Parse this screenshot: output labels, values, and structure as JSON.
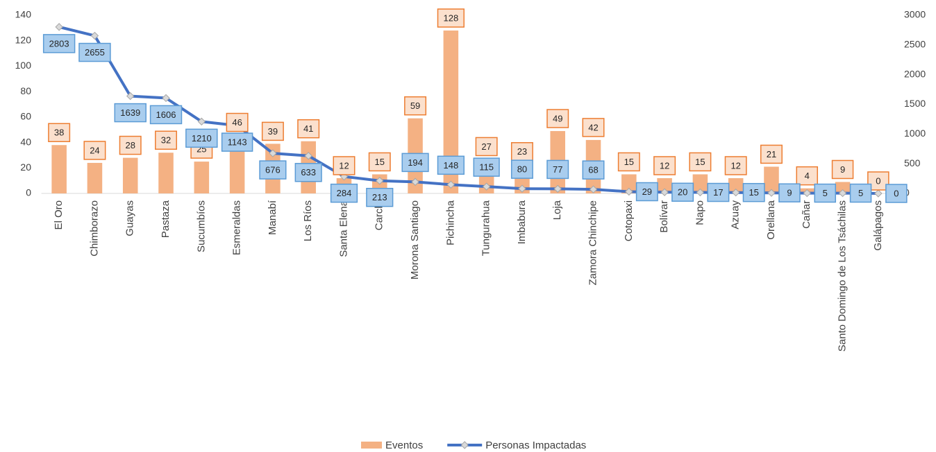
{
  "chart_data": {
    "type": "bar-line",
    "categories": [
      "El Oro",
      "Chimborazo",
      "Guayas",
      "Pastaza",
      "Sucumbíos",
      "Esmeraldas",
      "Manabí",
      "Los Ríos",
      "Santa Elena",
      "Carchi",
      "Morona Santiago",
      "Pichincha",
      "Tungurahua",
      "Imbabura",
      "Loja",
      "Zamora Chinchipe",
      "Cotopaxi",
      "Bolívar",
      "Napo",
      "Azuay",
      "Orellana",
      "Cañar",
      "Santo Domingo de Los Tsáchilas",
      "Galápagos"
    ],
    "series": [
      {
        "name": "Eventos",
        "type": "bar",
        "color": "#f4b183",
        "values": [
          38,
          24,
          28,
          32,
          25,
          46,
          39,
          41,
          12,
          15,
          59,
          128,
          27,
          23,
          49,
          42,
          15,
          12,
          15,
          12,
          21,
          4,
          9,
          0
        ]
      },
      {
        "name": "Personas Impactadas",
        "type": "line",
        "color": "#4472c4",
        "axis": "y2",
        "values": [
          2803,
          2655,
          1639,
          1606,
          1210,
          1143,
          676,
          633,
          284,
          213,
          194,
          148,
          115,
          80,
          77,
          68,
          29,
          20,
          17,
          15,
          9,
          5,
          5,
          0
        ]
      }
    ],
    "ylim": [
      0,
      140
    ],
    "yticks": [
      0,
      20,
      40,
      60,
      80,
      100,
      120,
      140
    ],
    "y2lim": [
      0,
      3000
    ],
    "y2ticks": [
      0,
      500,
      1000,
      1500,
      2000,
      2500,
      3000
    ],
    "grid": false,
    "legend": "bottom"
  }
}
